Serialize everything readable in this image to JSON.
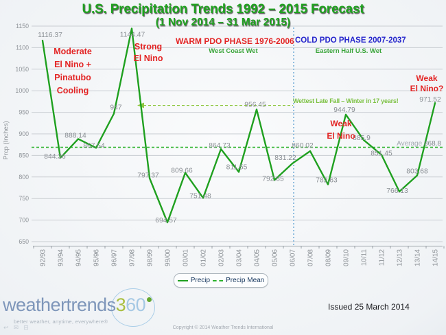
{
  "header": {
    "title": "U.S. Precipitation Trends 1992 – 2015 Forecast",
    "subtitle": "(1 Nov 2014 – 31 Mar 2015)"
  },
  "chart_data": {
    "type": "line",
    "title": "U.S. Precipitation Trends 1992 – 2015 Forecast",
    "subtitle": "(1 Nov 2014 – 31 Mar 2015)",
    "ylabel": "Prcp (Inches)",
    "xlabel": "",
    "ylim": [
      650,
      1150
    ],
    "ytick_step": 50,
    "grid": true,
    "legend_position": "bottom",
    "categories": [
      "92/93",
      "93/94",
      "94/95",
      "95/96",
      "96/97",
      "97/98",
      "98/99",
      "99/00",
      "00/01",
      "01/02",
      "02/03",
      "03/04",
      "04/05",
      "05/06",
      "06/07",
      "07/08",
      "08/09",
      "09/10",
      "10/11",
      "11/12",
      "12/13",
      "13/14",
      "14/15"
    ],
    "series": [
      {
        "name": "Precip",
        "values": [
          1116.37,
          844.36,
          888.14,
          867.54,
          947,
          1144.47,
          797.37,
          694.57,
          809.66,
          751.48,
          864.73,
          811.55,
          956.45,
          792.85,
          831.22,
          860.02,
          782.63,
          944.79,
          885.9,
          851.45,
          766.13,
          803.68,
          971.52
        ]
      }
    ],
    "mean": 868.8,
    "mean_series_name": "Precip Mean",
    "divider_at_category": "06/07",
    "arrow_annotation": {
      "text": "Wettest Late Fall – Winter in 17 years!",
      "level": 966,
      "points_to_category": "97/98"
    }
  },
  "annotations": {
    "moderate_el_nino": {
      "lines": [
        "Moderate",
        "El Nino +",
        "Pinatubo",
        "Cooling"
      ]
    },
    "strong_el_nino": {
      "lines": [
        "Strong",
        "El Nino"
      ]
    },
    "warm_pdo": {
      "title": "WARM PDO PHASE 1976-2006",
      "subtitle": "West Coast Wet"
    },
    "cold_pdo": {
      "title": "COLD PDO PHASE 2007-2037",
      "subtitle": "Eastern Half U.S. Wet"
    },
    "weak_el_nino_question": {
      "lines": [
        "Weak",
        "El Nino?"
      ]
    },
    "weak_el_nino": {
      "lines": [
        "Weak",
        "El Nino"
      ]
    },
    "wettest": "Wettest Late Fall – Winter in 17 years!",
    "average": {
      "label": "Average",
      "value": "868.8"
    }
  },
  "legend": {
    "precip": "Precip",
    "precip_mean": "Precip Mean"
  },
  "colors": {
    "line_green": "#1fa01f",
    "mean_green": "#2db32d",
    "title_green": "#1ea21e",
    "annotation_red": "#e32424",
    "annotation_blue": "#2525cc",
    "annotation_green": "#3ba53b",
    "light_green": "#7cc142",
    "arrow_green": "#8cc63f",
    "divider_blue": "#86b8dc",
    "label_gray": "#8a8f94",
    "axis_gray": "#8c9196",
    "gridline_gray": "#c9cdd2",
    "legend_navy": "#17375e"
  },
  "footer": {
    "issued": "Issued 25 March 2014",
    "copyright": "Copyright © 2014 Weather Trends International",
    "logo": {
      "brand": "weathertrends",
      "suffix_3": "3",
      "suffix_60": "60",
      "tagline": "better weather, anytime, everywhere®"
    }
  }
}
